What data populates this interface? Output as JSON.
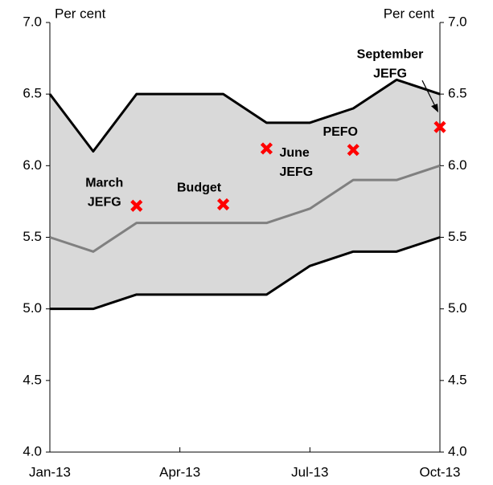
{
  "chart_data": {
    "type": "band",
    "y_label_left": "Per cent",
    "y_label_right": "Per cent",
    "categories": [
      "Jan-13",
      null,
      null,
      "Apr-13",
      null,
      null,
      "Jul-13",
      null,
      null,
      "Oct-13"
    ],
    "band_fill": "#d9d9d9",
    "series": [
      {
        "color": "#000000",
        "values": [
          6.5,
          6.1,
          6.5,
          6.5,
          6.5,
          6.3,
          6.3,
          6.4,
          6.6,
          6.5
        ]
      },
      {
        "color": "#808080",
        "values": [
          5.5,
          5.4,
          5.6,
          5.6,
          5.6,
          5.6,
          5.7,
          5.9,
          5.9,
          6.0
        ]
      },
      {
        "color": "#000000",
        "values": [
          5.0,
          5.0,
          5.1,
          5.1,
          5.1,
          5.1,
          5.3,
          5.4,
          5.4,
          5.5
        ]
      }
    ],
    "markers": {
      "color": "#ff0000",
      "values": [
        null,
        null,
        5.72,
        null,
        5.73,
        6.12,
        null,
        6.11,
        null,
        6.27
      ],
      "labels": [
        null,
        null,
        [
          "March",
          "JEFG"
        ],
        null,
        [
          "Budget"
        ],
        [
          "June",
          "JEFG"
        ],
        null,
        [
          "PEFO"
        ],
        null,
        [
          "September",
          "JEFG"
        ]
      ]
    },
    "ylim": [
      4.0,
      7.0
    ],
    "yticks": [
      {
        "value": 4,
        "label": "4.0"
      },
      {
        "value": 4.5,
        "label": "4.5"
      },
      {
        "value": 5,
        "label": "5.0"
      },
      {
        "value": 5.5,
        "label": "5.5"
      },
      {
        "value": 6,
        "label": "6.0"
      },
      {
        "value": 6.5,
        "label": "6.5"
      },
      {
        "value": 7,
        "label": "7.0"
      }
    ],
    "y2lim": [
      4.0,
      7.0
    ],
    "y2ticks": [
      {
        "value": 4,
        "label": "4.0"
      },
      {
        "value": 4.5,
        "label": "4.5"
      },
      {
        "value": 5,
        "label": "5.0"
      },
      {
        "value": 5.5,
        "label": "5.5"
      },
      {
        "value": 6,
        "label": "6.0"
      },
      {
        "value": 6.5,
        "label": "6.5"
      },
      {
        "value": 7,
        "label": "7.0"
      }
    ]
  }
}
